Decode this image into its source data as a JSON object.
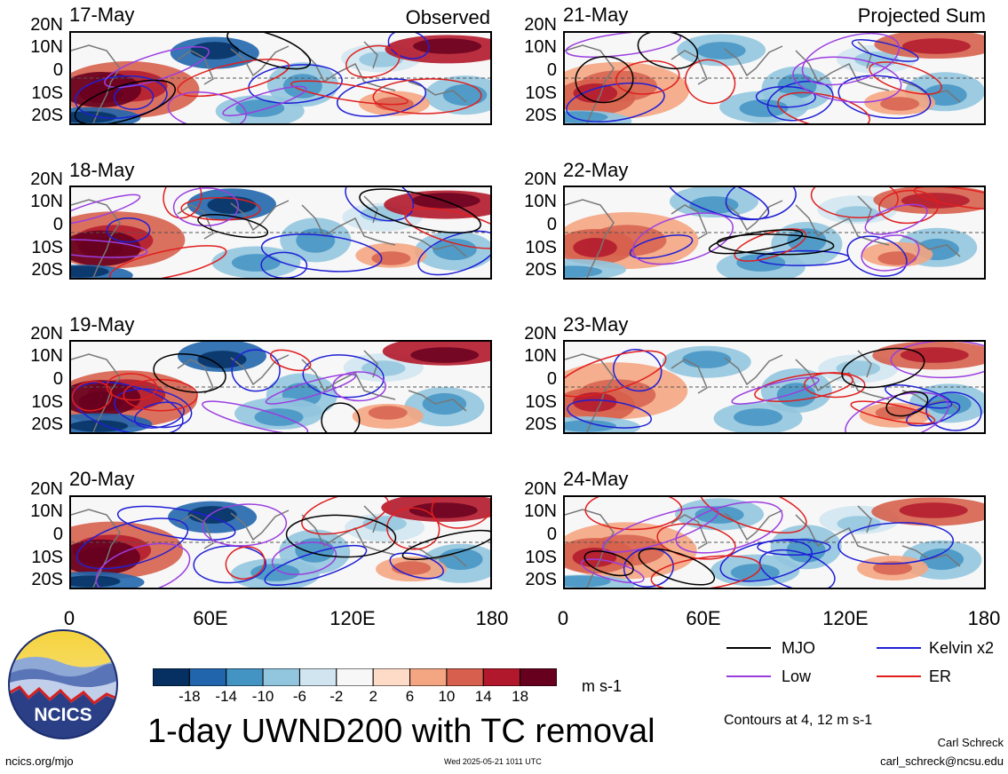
{
  "panels_left": [
    {
      "date": "17-May",
      "tag": "Observed"
    },
    {
      "date": "18-May",
      "tag": ""
    },
    {
      "date": "19-May",
      "tag": ""
    },
    {
      "date": "20-May",
      "tag": ""
    }
  ],
  "panels_right": [
    {
      "date": "21-May",
      "tag": "Projected Sum"
    },
    {
      "date": "22-May",
      "tag": ""
    },
    {
      "date": "23-May",
      "tag": ""
    },
    {
      "date": "24-May",
      "tag": ""
    }
  ],
  "lat_labels": [
    "20N",
    "10N",
    "0",
    "10S",
    "20S"
  ],
  "lon_labels": [
    "0",
    "60E",
    "120E",
    "180"
  ],
  "colorbar": {
    "ticks": [
      "-18",
      "-14",
      "-10",
      "-6",
      "-2",
      "2",
      "6",
      "10",
      "14",
      "18"
    ],
    "units": "m s-1",
    "colors": [
      "#053061",
      "#2166ac",
      "#4393c3",
      "#92c5de",
      "#d1e5f0",
      "#f7f7f7",
      "#fddbc7",
      "#f4a582",
      "#d6604d",
      "#b2182b",
      "#67001f"
    ]
  },
  "title": "1-day UWND200 with TC removal",
  "legend": {
    "mjo": {
      "label": "MJO",
      "color": "#000000"
    },
    "kelvin": {
      "label": "Kelvin x2",
      "color": "#1f1fd6"
    },
    "low": {
      "label": "Low",
      "color": "#9a3ee0"
    },
    "er": {
      "label": "ER",
      "color": "#e01f1f"
    }
  },
  "contours_note": "Contours at 4, 12 m s-1",
  "logo_text": "NCICS",
  "footer": {
    "url": "ncics.org/mjo",
    "timestamp": "Wed 2025-05-21 1011 UTC",
    "author": "Carl Schreck",
    "email": "carl_schreck@ncsu.edu"
  }
}
